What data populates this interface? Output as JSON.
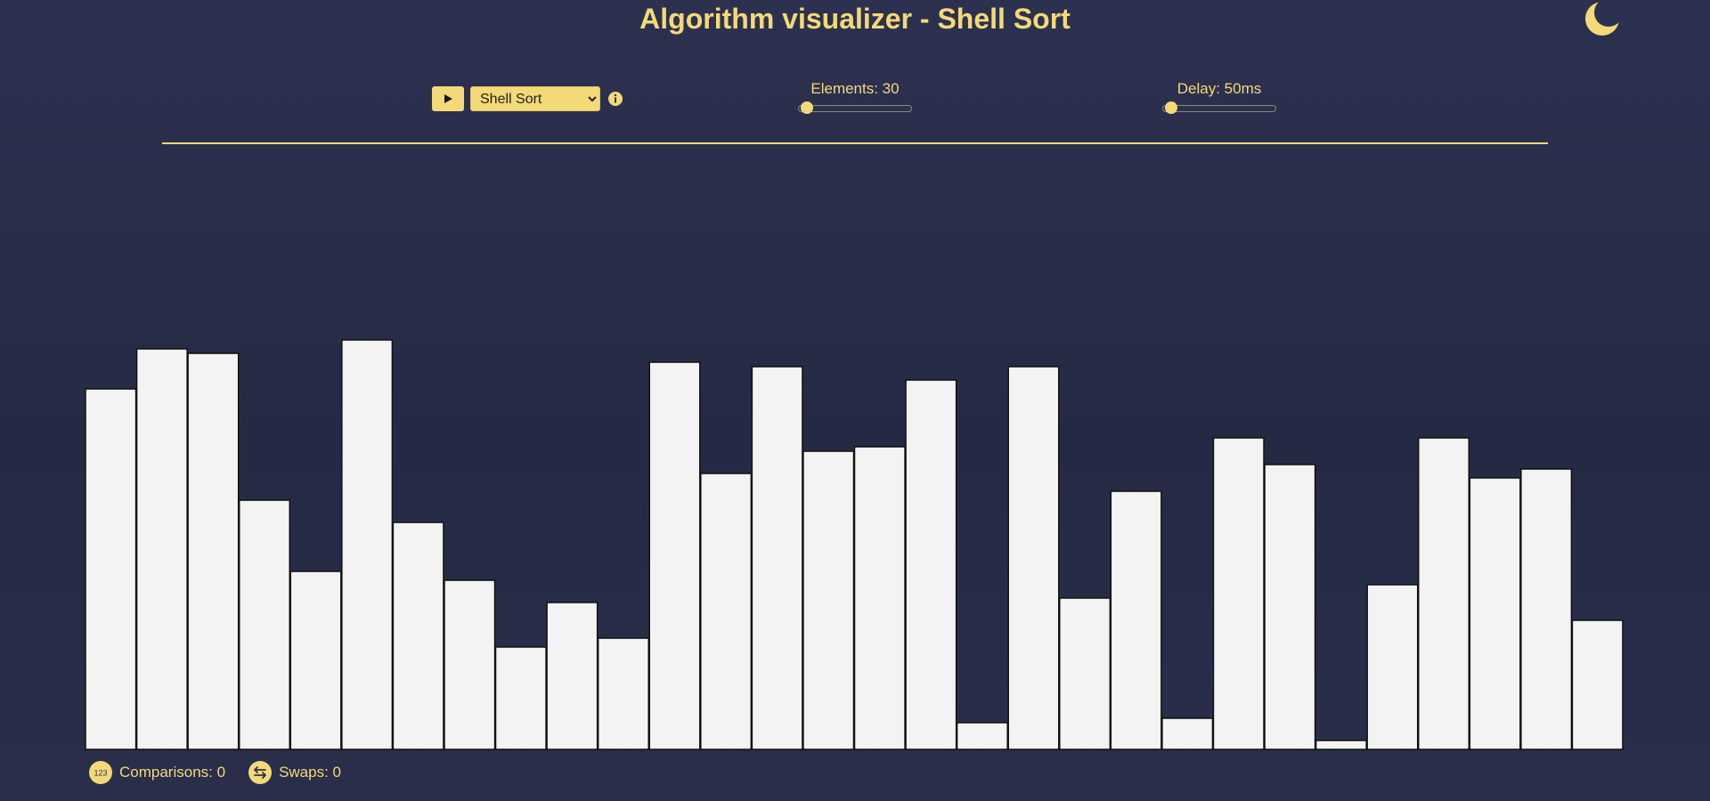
{
  "header": {
    "title": "Algorithm visualizer - Shell Sort"
  },
  "controls": {
    "algorithm_selected": "Shell Sort",
    "algorithm_options": [
      "Shell Sort"
    ],
    "elements_label": "Elements: 30",
    "elements_value": 30,
    "delay_label": "Delay: 50ms",
    "delay_value": 50
  },
  "stats": {
    "comparisons_label": "Comparisons: 0",
    "swaps_label": "Swaps: 0",
    "comparisons_icon_text": "123"
  },
  "icons": {
    "theme": "moon-icon",
    "play": "play-icon",
    "info": "info-icon",
    "comparisons": "counter-icon",
    "swaps": "swap-arrows-icon"
  },
  "colors": {
    "accent": "#f4d978",
    "bar_fill": "#f3f3f3",
    "bar_stroke": "#111111",
    "background": "#2a2e4a"
  },
  "chart_data": {
    "type": "bar",
    "values": [
      81,
      90,
      89,
      56,
      40,
      92,
      51,
      38,
      23,
      33,
      25,
      87,
      62,
      86,
      67,
      68,
      83,
      6,
      86,
      34,
      58,
      7,
      70,
      64,
      2,
      37,
      70,
      61,
      63,
      29
    ],
    "ylim": [
      0,
      100
    ],
    "grid": false
  }
}
